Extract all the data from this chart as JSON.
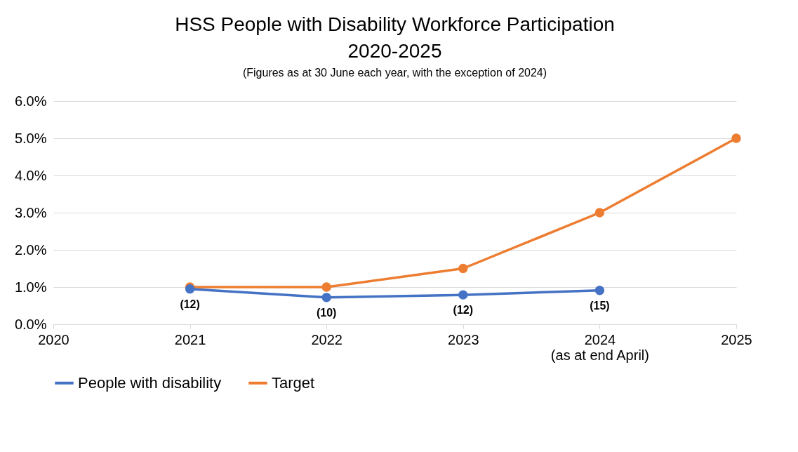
{
  "chart_data": {
    "type": "line",
    "title": "HSS People with Disability Workforce Participation\n2020-2025",
    "subtitle": "(Figures as at 30 June each year, with the exception of 2024)",
    "categories": [
      "2020",
      "2021",
      "2022",
      "2023",
      "2024\n(as at end April)",
      "2025"
    ],
    "series": [
      {
        "name": "People with disability",
        "color": "#4472c4",
        "values": [
          null,
          0.95,
          0.72,
          0.79,
          0.91,
          null
        ]
      },
      {
        "name": "Target",
        "color": "#ed7d31",
        "values": [
          null,
          1.0,
          1.0,
          1.5,
          3.0,
          5.0
        ]
      }
    ],
    "ylim": [
      0,
      6
    ],
    "yticks": [
      {
        "value": 0,
        "label": "0.0%"
      },
      {
        "value": 1,
        "label": "1.0%"
      },
      {
        "value": 2,
        "label": "2.0%"
      },
      {
        "value": 3,
        "label": "3.0%"
      },
      {
        "value": 4,
        "label": "4.0%"
      },
      {
        "value": 5,
        "label": "5.0%"
      },
      {
        "value": 6,
        "label": "6.0%"
      }
    ],
    "annotations": [
      {
        "text": "(12)",
        "x": "2021",
        "y": 0.95
      },
      {
        "text": "(10)",
        "x": "2022",
        "y": 0.72
      },
      {
        "text": "(12)",
        "x": "2023",
        "y": 0.79
      },
      {
        "text": "(15)",
        "x": "2024\n(as at end April)",
        "y": 0.91
      }
    ],
    "grid": "y",
    "legend": "bottom",
    "marker": "circle",
    "line_style": "solid"
  }
}
